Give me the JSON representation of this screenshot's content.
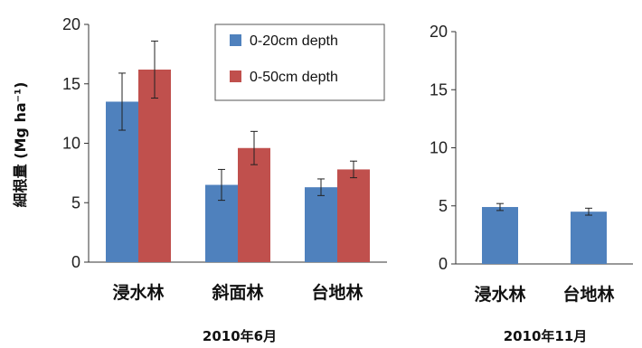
{
  "chart_data": [
    {
      "type": "bar",
      "subtitle": "2010年6月",
      "ylabel": "細根量 (Mg ha⁻¹)",
      "ylim": [
        0,
        20
      ],
      "yticks": [
        0,
        5,
        10,
        15,
        20
      ],
      "categories": [
        "浸水林",
        "斜面林",
        "台地林"
      ],
      "legend_position": "top-right",
      "series": [
        {
          "name": "0-20cm depth",
          "color": "#4f81bd",
          "values": [
            13.5,
            6.5,
            6.3
          ],
          "errors": [
            2.4,
            1.3,
            0.7
          ]
        },
        {
          "name": "0-50cm depth",
          "color": "#c0504d",
          "values": [
            16.2,
            9.6,
            7.8
          ],
          "errors": [
            2.4,
            1.4,
            0.7
          ]
        }
      ]
    },
    {
      "type": "bar",
      "subtitle": "2010年11月",
      "ylim": [
        0,
        20
      ],
      "yticks": [
        0,
        5,
        10,
        15,
        20
      ],
      "categories": [
        "浸水林",
        "台地林"
      ],
      "series": [
        {
          "color": "#4f81bd",
          "values": [
            4.9,
            4.5
          ],
          "errors": [
            0.3,
            0.3
          ]
        }
      ]
    }
  ]
}
